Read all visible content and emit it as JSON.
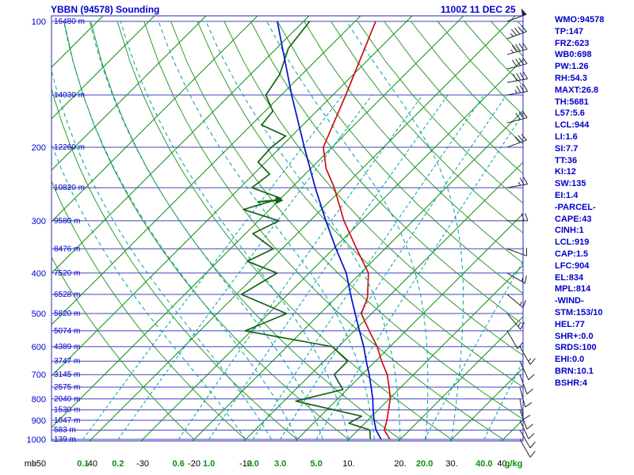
{
  "header": {
    "title": "YBBN (94578) Sounding",
    "datetime": "1100Z 11 DEC 25"
  },
  "stats_panel": {
    "lines": [
      "WMO:94578",
      "TP:147",
      "FRZ:623",
      "WB0:698",
      "PW:1.26",
      "RH:54.3",
      "MAXT:26.8",
      "TH:5681",
      "L57:5.6",
      "LCL:944",
      "LI:1.6",
      "SI:7.7",
      "TT:36",
      "KI:12",
      "SW:135",
      "EI:1.4",
      "-PARCEL-",
      "CAPE:43",
      "CINH:1",
      "LCL:919",
      "CAP:1.5",
      "LFC:904",
      "EL:834",
      "MPL:814",
      "-WIND-",
      "STM:153/10",
      "HEL:77",
      "SHR+:0.0",
      "SRDS:100",
      "EHI:0.0",
      "BRN:10.1",
      "BSHR:4"
    ]
  },
  "chart_data": {
    "type": "line",
    "subtype": "skew-t-log-p-sounding",
    "title": "YBBN (94578) Sounding",
    "pressure_axis": {
      "unit": "mb",
      "scale": "log",
      "labeled_ticks": [
        100,
        200,
        300,
        400,
        500,
        600,
        700,
        800,
        900,
        1000
      ],
      "gridline_levels": [
        100,
        150,
        200,
        250,
        300,
        350,
        400,
        450,
        500,
        550,
        600,
        650,
        700,
        750,
        800,
        850,
        900,
        950,
        1000
      ],
      "range": [
        100,
        1000
      ]
    },
    "temp_axis": {
      "unit": "C",
      "skew": "45deg",
      "isotherm_step": 10,
      "isotherm_range": [
        -120,
        40
      ],
      "labeled_ticks": [
        -50,
        -40,
        -30,
        -20,
        -10,
        10,
        20,
        30,
        40
      ]
    },
    "mixing_ratio_axis": {
      "unit": "g/kg",
      "labeled_ticks": [
        0.1,
        0.2,
        0.6,
        1.0,
        2.0,
        3.0,
        5.0,
        20.0,
        40.0
      ]
    },
    "dry_adiabats_theta_c": {
      "start": -20,
      "end": 180,
      "step": 10
    },
    "moist_adiabats_start_c": {
      "start": -10,
      "end": 30,
      "step": 5
    },
    "height_labels": [
      {
        "p": 100,
        "text": "16480 m"
      },
      {
        "p": 150,
        "text": "14030 m"
      },
      {
        "p": 200,
        "text": "12260 m"
      },
      {
        "p": 250,
        "text": "10820 m"
      },
      {
        "p": 300,
        "text": "9580 m"
      },
      {
        "p": 350,
        "text": "8476 m"
      },
      {
        "p": 400,
        "text": "7520 m"
      },
      {
        "p": 450,
        "text": "6528 m"
      },
      {
        "p": 500,
        "text": "5820 m"
      },
      {
        "p": 550,
        "text": "5074 m"
      },
      {
        "p": 600,
        "text": "4389 m"
      },
      {
        "p": 650,
        "text": "3747 m"
      },
      {
        "p": 700,
        "text": "3145 m"
      },
      {
        "p": 750,
        "text": "2575 m"
      },
      {
        "p": 800,
        "text": "2040 m"
      },
      {
        "p": 850,
        "text": "1530 m"
      },
      {
        "p": 900,
        "text": "1047 m"
      },
      {
        "p": 950,
        "text": "583 m"
      },
      {
        "p": 1000,
        "text": "139 m"
      }
    ],
    "series": [
      {
        "name": "temperature",
        "color": "#cc1111",
        "points": [
          [
            1000,
            18.0
          ],
          [
            950,
            15.1
          ],
          [
            900,
            13.7
          ],
          [
            850,
            12.0
          ],
          [
            800,
            10.2
          ],
          [
            750,
            7.7
          ],
          [
            700,
            4.9
          ],
          [
            650,
            1.2
          ],
          [
            600,
            -2.5
          ],
          [
            550,
            -7.1
          ],
          [
            500,
            -12.0
          ],
          [
            460,
            -13.8
          ],
          [
            450,
            -14.5
          ],
          [
            400,
            -18.5
          ],
          [
            350,
            -25.5
          ],
          [
            300,
            -33.4
          ],
          [
            250,
            -41.7
          ],
          [
            225,
            -47.0
          ],
          [
            200,
            -51.7
          ],
          [
            150,
            -57.5
          ],
          [
            100,
            -66.0
          ]
        ]
      },
      {
        "name": "dewpoint",
        "color": "#156315",
        "points": [
          [
            1000,
            14.2
          ],
          [
            950,
            12.3
          ],
          [
            915,
            6.9
          ],
          [
            880,
            8.0
          ],
          [
            810,
            -7.7
          ],
          [
            760,
            -0.8
          ],
          [
            700,
            -5.4
          ],
          [
            650,
            -5.4
          ],
          [
            600,
            -11.2
          ],
          [
            550,
            -31.2
          ],
          [
            500,
            -26.5
          ],
          [
            450,
            -39.0
          ],
          [
            400,
            -36.2
          ],
          [
            375,
            -44.3
          ],
          [
            350,
            -41.7
          ],
          [
            322,
            -48.6
          ],
          [
            300,
            -46.0
          ],
          [
            282,
            -55.1
          ],
          [
            265,
            -50.0
          ],
          [
            250,
            -57.7
          ],
          [
            232,
            -56.9
          ],
          [
            217,
            -61.5
          ],
          [
            200,
            -61.8
          ],
          [
            188,
            -61.2
          ],
          [
            177,
            -68.0
          ],
          [
            164,
            -68.5
          ],
          [
            150,
            -73.0
          ],
          [
            134,
            -74.3
          ],
          [
            116,
            -77.7
          ],
          [
            100,
            -78.8
          ]
        ]
      },
      {
        "name": "wet_bulb",
        "color": "#0011cc",
        "points": [
          [
            1000,
            16.3
          ],
          [
            950,
            13.5
          ],
          [
            900,
            11.2
          ],
          [
            850,
            9.0
          ],
          [
            800,
            6.8
          ],
          [
            750,
            4.2
          ],
          [
            700,
            1.4
          ],
          [
            650,
            -1.8
          ],
          [
            600,
            -5.1
          ],
          [
            550,
            -9.0
          ],
          [
            500,
            -13.2
          ],
          [
            450,
            -17.8
          ],
          [
            400,
            -22.8
          ],
          [
            350,
            -29.5
          ],
          [
            300,
            -36.9
          ],
          [
            250,
            -45.4
          ],
          [
            200,
            -55.4
          ],
          [
            150,
            -68.0
          ],
          [
            100,
            -85.1
          ]
        ]
      }
    ],
    "marker_arrow": {
      "p": 268,
      "t": -50.5
    },
    "wind_barbs": {
      "unit": "kt",
      "levels": [
        {
          "p": 100,
          "dir": 70,
          "spd": 50
        },
        {
          "p": 110,
          "dir": 70,
          "spd": 45
        },
        {
          "p": 120,
          "dir": 75,
          "spd": 45
        },
        {
          "p": 130,
          "dir": 75,
          "spd": 40
        },
        {
          "p": 140,
          "dir": 80,
          "spd": 40
        },
        {
          "p": 150,
          "dir": 80,
          "spd": 35
        },
        {
          "p": 175,
          "dir": 75,
          "spd": 30
        },
        {
          "p": 200,
          "dir": 70,
          "spd": 30
        },
        {
          "p": 250,
          "dir": 80,
          "spd": 25
        },
        {
          "p": 300,
          "dir": 90,
          "spd": 20
        },
        {
          "p": 350,
          "dir": 110,
          "spd": 20
        },
        {
          "p": 400,
          "dir": 120,
          "spd": 15
        },
        {
          "p": 450,
          "dir": 130,
          "spd": 15
        },
        {
          "p": 500,
          "dir": 140,
          "spd": 15
        },
        {
          "p": 550,
          "dir": 150,
          "spd": 10
        },
        {
          "p": 600,
          "dir": 150,
          "spd": 15
        },
        {
          "p": 650,
          "dir": 155,
          "spd": 10
        },
        {
          "p": 700,
          "dir": 160,
          "spd": 10
        },
        {
          "p": 750,
          "dir": 165,
          "spd": 10
        },
        {
          "p": 800,
          "dir": 170,
          "spd": 10
        },
        {
          "p": 850,
          "dir": 160,
          "spd": 10
        },
        {
          "p": 900,
          "dir": 155,
          "spd": 10
        },
        {
          "p": 950,
          "dir": 150,
          "spd": 10
        },
        {
          "p": 1000,
          "dir": 150,
          "spd": 10
        }
      ]
    },
    "colors": {
      "pressure_grid": "#4040c0",
      "isotherm": "#109010",
      "dry_adiabat": "#2f9a2f",
      "moist_adiabat": "#00a0a0",
      "mixing_ratio": "#00a0a0",
      "axis_text_blue": "#0000cc",
      "temp_label": "#000000",
      "ratio_label": "#0a8f0a",
      "barb": "#20203a",
      "border": "#2a2ab0"
    }
  }
}
